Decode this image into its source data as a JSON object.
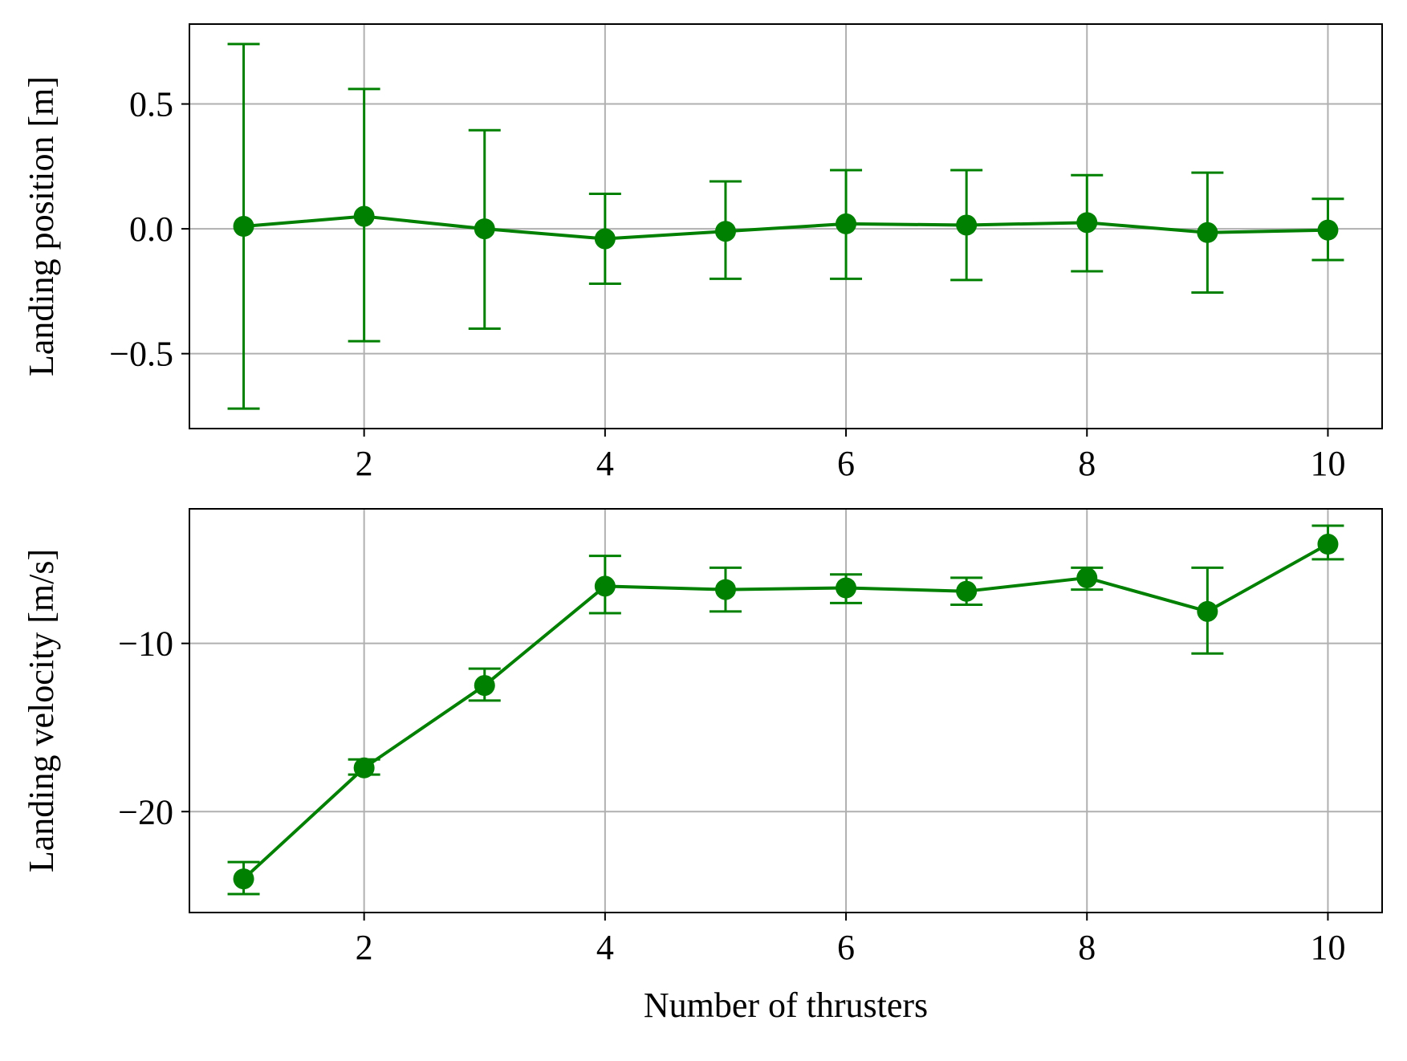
{
  "chart_data": [
    {
      "type": "line",
      "title": "",
      "xlabel": "",
      "ylabel": "Landing position [m]",
      "xlim": [
        0.55,
        10.45
      ],
      "ylim": [
        -0.8,
        0.82
      ],
      "xticks": [
        2,
        4,
        6,
        8,
        10
      ],
      "xtick_labels": [
        "2",
        "4",
        "6",
        "8",
        "10"
      ],
      "yticks": [
        0.5,
        0.0,
        -0.5
      ],
      "ytick_labels": [
        "0.5",
        "0.0",
        "−0.5"
      ],
      "grid": true,
      "legend": "none",
      "series": [
        {
          "x": [
            1,
            2,
            3,
            4,
            5,
            6,
            7,
            8,
            9,
            10
          ],
          "y": [
            0.01,
            0.05,
            0.0,
            -0.04,
            -0.01,
            0.02,
            0.015,
            0.025,
            -0.015,
            -0.005
          ],
          "y_lower": [
            -0.72,
            -0.45,
            -0.4,
            -0.22,
            -0.2,
            -0.2,
            -0.205,
            -0.17,
            -0.255,
            -0.125
          ],
          "y_upper": [
            0.74,
            0.56,
            0.395,
            0.14,
            0.19,
            0.235,
            0.235,
            0.215,
            0.225,
            0.12
          ],
          "color": "#008000"
        }
      ]
    },
    {
      "type": "line",
      "title": "",
      "xlabel": "Number of thrusters",
      "ylabel": "Landing velocity [m/s]",
      "xlim": [
        0.55,
        10.45
      ],
      "ylim": [
        -26.0,
        -2.0
      ],
      "xticks": [
        2,
        4,
        6,
        8,
        10
      ],
      "xtick_labels": [
        "2",
        "4",
        "6",
        "8",
        "10"
      ],
      "yticks": [
        -10,
        -20
      ],
      "ytick_labels": [
        "−10",
        "−20"
      ],
      "grid": true,
      "legend": "none",
      "series": [
        {
          "x": [
            1,
            2,
            3,
            4,
            5,
            6,
            7,
            8,
            9,
            10
          ],
          "y": [
            -24.0,
            -17.4,
            -12.5,
            -6.6,
            -6.8,
            -6.7,
            -6.9,
            -6.1,
            -8.1,
            -4.1
          ],
          "y_lower": [
            -24.9,
            -17.8,
            -13.4,
            -8.2,
            -8.1,
            -7.6,
            -7.7,
            -6.8,
            -10.6,
            -5.0
          ],
          "y_upper": [
            -23.0,
            -16.9,
            -11.5,
            -4.8,
            -5.5,
            -5.9,
            -6.1,
            -5.5,
            -5.5,
            -3.0
          ],
          "color": "#008000"
        }
      ]
    }
  ]
}
